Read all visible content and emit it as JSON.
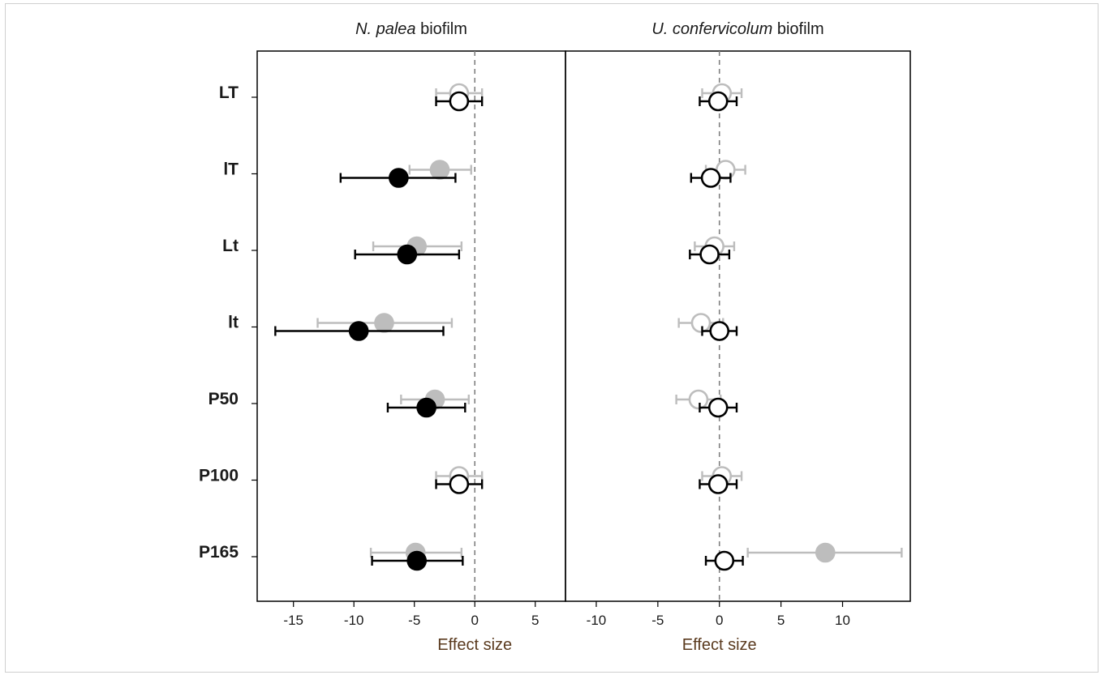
{
  "chart_data": {
    "type": "scatter",
    "subtype": "forest-plot with error bars",
    "rows": [
      "LT",
      "lT",
      "Lt",
      "lt",
      "P50",
      "P100",
      "P165"
    ],
    "grid": false,
    "legend": "none",
    "reference_line_x": 0,
    "styles": {
      "gray_series_color": "#bdbdbd",
      "black_series_color": "#000000",
      "open_marker_fill": "#ffffff",
      "reference_line_color": "#808080"
    },
    "panels": [
      {
        "title_italic": "N. palea",
        "title_plain": " biofilm",
        "xlabel": "Effect size",
        "xlim": [
          -18,
          7.5
        ],
        "xticks": [
          -15,
          -10,
          -5,
          0,
          5
        ],
        "series": [
          {
            "points": [
              {
                "row": "LT",
                "mean": -1.3,
                "lo": -3.2,
                "hi": 0.6,
                "filled": false
              },
              {
                "row": "lT",
                "mean": -2.9,
                "lo": -5.4,
                "hi": -0.3,
                "filled": true
              },
              {
                "row": "Lt",
                "mean": -4.8,
                "lo": -8.4,
                "hi": -1.1,
                "filled": true
              },
              {
                "row": "lt",
                "mean": -7.5,
                "lo": -13.0,
                "hi": -1.9,
                "filled": true
              },
              {
                "row": "P50",
                "mean": -3.3,
                "lo": -6.1,
                "hi": -0.5,
                "filled": true
              },
              {
                "row": "P100",
                "mean": -1.3,
                "lo": -3.2,
                "hi": 0.6,
                "filled": false
              },
              {
                "row": "P165",
                "mean": -4.9,
                "lo": -8.6,
                "hi": -1.1,
                "filled": true
              }
            ],
            "style": "gray"
          },
          {
            "points": [
              {
                "row": "LT",
                "mean": -1.3,
                "lo": -3.2,
                "hi": 0.6,
                "filled": false
              },
              {
                "row": "lT",
                "mean": -6.3,
                "lo": -11.1,
                "hi": -1.6,
                "filled": true
              },
              {
                "row": "Lt",
                "mean": -5.6,
                "lo": -9.9,
                "hi": -1.3,
                "filled": true
              },
              {
                "row": "lt",
                "mean": -9.6,
                "lo": -16.5,
                "hi": -2.6,
                "filled": true
              },
              {
                "row": "P50",
                "mean": -4.0,
                "lo": -7.2,
                "hi": -0.8,
                "filled": true
              },
              {
                "row": "P100",
                "mean": -1.3,
                "lo": -3.2,
                "hi": 0.6,
                "filled": false
              },
              {
                "row": "P165",
                "mean": -4.8,
                "lo": -8.5,
                "hi": -1.0,
                "filled": true
              }
            ],
            "style": "black"
          }
        ]
      },
      {
        "title_italic": "U. confervicolum",
        "title_plain": " biofilm",
        "xlabel": "Effect size",
        "xlim": [
          -12.5,
          15.5
        ],
        "xticks": [
          -10,
          -5,
          0,
          5,
          10
        ],
        "series": [
          {
            "points": [
              {
                "row": "LT",
                "mean": 0.2,
                "lo": -1.4,
                "hi": 1.8,
                "filled": false
              },
              {
                "row": "lT",
                "mean": 0.5,
                "lo": -1.1,
                "hi": 2.1,
                "filled": false
              },
              {
                "row": "Lt",
                "mean": -0.4,
                "lo": -2.0,
                "hi": 1.2,
                "filled": false
              },
              {
                "row": "lt",
                "mean": -1.5,
                "lo": -3.3,
                "hi": 0.3,
                "filled": false
              },
              {
                "row": "P50",
                "mean": -1.7,
                "lo": -3.5,
                "hi": 0.1,
                "filled": false
              },
              {
                "row": "P100",
                "mean": 0.2,
                "lo": -1.4,
                "hi": 1.8,
                "filled": false
              },
              {
                "row": "P165",
                "mean": 8.6,
                "lo": 2.3,
                "hi": 14.8,
                "filled": true
              }
            ],
            "style": "gray"
          },
          {
            "points": [
              {
                "row": "LT",
                "mean": -0.1,
                "lo": -1.6,
                "hi": 1.4,
                "filled": false
              },
              {
                "row": "lT",
                "mean": -0.7,
                "lo": -2.3,
                "hi": 0.9,
                "filled": false
              },
              {
                "row": "Lt",
                "mean": -0.8,
                "lo": -2.4,
                "hi": 0.8,
                "filled": false
              },
              {
                "row": "lt",
                "mean": 0.0,
                "lo": -1.4,
                "hi": 1.4,
                "filled": false
              },
              {
                "row": "P50",
                "mean": -0.1,
                "lo": -1.6,
                "hi": 1.4,
                "filled": false
              },
              {
                "row": "P100",
                "mean": -0.1,
                "lo": -1.6,
                "hi": 1.4,
                "filled": false
              },
              {
                "row": "P165",
                "mean": 0.4,
                "lo": -1.1,
                "hi": 1.9,
                "filled": false
              }
            ],
            "style": "black"
          }
        ]
      }
    ]
  }
}
